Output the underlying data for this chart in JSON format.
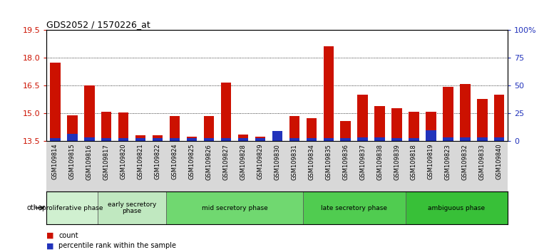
{
  "title": "GDS2052 / 1570226_at",
  "samples": [
    "GSM109814",
    "GSM109815",
    "GSM109816",
    "GSM109817",
    "GSM109820",
    "GSM109821",
    "GSM109822",
    "GSM109824",
    "GSM109825",
    "GSM109826",
    "GSM109827",
    "GSM109828",
    "GSM109829",
    "GSM109830",
    "GSM109831",
    "GSM109834",
    "GSM109835",
    "GSM109836",
    "GSM109837",
    "GSM109838",
    "GSM109839",
    "GSM109818",
    "GSM109819",
    "GSM109823",
    "GSM109832",
    "GSM109833",
    "GSM109840"
  ],
  "count_values": [
    17.75,
    14.9,
    16.5,
    15.1,
    15.05,
    13.82,
    13.82,
    14.85,
    13.75,
    14.85,
    16.65,
    13.85,
    13.75,
    13.85,
    14.85,
    14.75,
    18.65,
    14.6,
    16.0,
    15.4,
    15.3,
    15.1,
    15.1,
    16.45,
    16.6,
    15.8,
    16.0
  ],
  "blue_heights": [
    0.17,
    0.4,
    0.2,
    0.15,
    0.15,
    0.15,
    0.15,
    0.15,
    0.15,
    0.15,
    0.15,
    0.15,
    0.15,
    0.55,
    0.15,
    0.15,
    0.15,
    0.15,
    0.2,
    0.2,
    0.15,
    0.15,
    0.6,
    0.2,
    0.2,
    0.2,
    0.2
  ],
  "phases": [
    {
      "label": "proliferative phase",
      "start": 0,
      "end": 3,
      "color": "#d0f0d0"
    },
    {
      "label": "early secretory\nphase",
      "start": 3,
      "end": 7,
      "color": "#c0e8c0"
    },
    {
      "label": "mid secretory phase",
      "start": 7,
      "end": 15,
      "color": "#70d870"
    },
    {
      "label": "late secretory phase",
      "start": 15,
      "end": 21,
      "color": "#50cc50"
    },
    {
      "label": "ambiguous phase",
      "start": 21,
      "end": 27,
      "color": "#38c038"
    }
  ],
  "ylim": [
    13.5,
    19.5
  ],
  "yticks": [
    13.5,
    15.0,
    16.5,
    18.0,
    19.5
  ],
  "right_ylim": [
    0,
    100
  ],
  "right_yticks": [
    0,
    25,
    50,
    75,
    100
  ],
  "bar_color": "#cc1100",
  "blue_color": "#2233bb",
  "base": 13.5,
  "bar_width": 0.6,
  "bg_gray": "#d8d8d8"
}
